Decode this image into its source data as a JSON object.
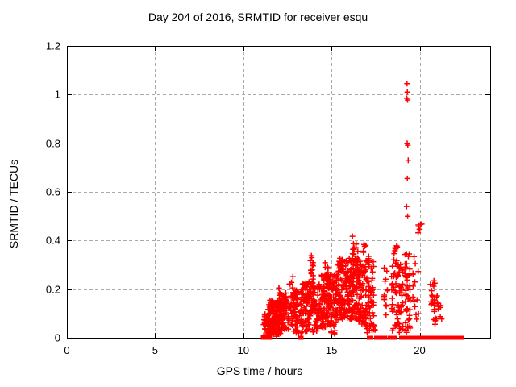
{
  "chart_data": {
    "type": "scatter",
    "title": "Day 204 of 2016, SRMTID for receiver esqu",
    "xlabel": "GPS time / hours",
    "ylabel": "SRMTID / TECUs",
    "xlim": [
      0,
      24
    ],
    "ylim": [
      0,
      1.2
    ],
    "xticks": [
      0,
      5,
      10,
      15,
      20
    ],
    "yticks": [
      0,
      0.2,
      0.4,
      0.6,
      0.8,
      1,
      1.2
    ],
    "xtick_labels": [
      "0",
      "5",
      "10",
      "15",
      "20"
    ],
    "ytick_labels": [
      "0",
      "0.2",
      "0.4",
      "0.6",
      "0.8",
      "1",
      "1.2"
    ],
    "grid": true,
    "legend": "none",
    "marker": "plus",
    "marker_color": "#ff0000",
    "grid_color": "#aaaaaa",
    "axis_color": "#000000",
    "background_color": "#ffffff",
    "series_name": "SRMTID",
    "spike_points": [
      [
        19.28,
        1.045
      ],
      [
        19.3,
        1.01
      ],
      [
        19.27,
        0.985
      ],
      [
        19.32,
        0.978
      ],
      [
        19.29,
        0.8
      ],
      [
        19.33,
        0.792
      ],
      [
        19.35,
        0.73
      ],
      [
        19.3,
        0.655
      ],
      [
        19.26,
        0.54
      ],
      [
        19.32,
        0.5
      ]
    ],
    "clusters": [
      {
        "x": [
          11.15,
          11.5
        ],
        "y": [
          0.005,
          0.11
        ],
        "n": 30
      },
      {
        "x": [
          11.4,
          12.35
        ],
        "y": [
          0.01,
          0.155
        ],
        "n": 170
      },
      {
        "x": [
          11.85,
          11.98
        ],
        "y": [
          0.004,
          0.02
        ],
        "n": 4
      },
      {
        "x": [
          11.95,
          12.45
        ],
        "y": [
          0.12,
          0.205
        ],
        "n": 25
      },
      {
        "x": [
          12.4,
          13.35
        ],
        "y": [
          0.02,
          0.2
        ],
        "n": 110
      },
      {
        "x": [
          12.55,
          12.85
        ],
        "y": [
          0.2,
          0.26
        ],
        "n": 5
      },
      {
        "x": [
          13.35,
          14.35
        ],
        "y": [
          0.02,
          0.23
        ],
        "n": 130
      },
      {
        "x": [
          13.78,
          13.98
        ],
        "y": [
          0.17,
          0.345
        ],
        "n": 16
      },
      {
        "x": [
          14.35,
          15.35
        ],
        "y": [
          0.04,
          0.26
        ],
        "n": 170
      },
      {
        "x": [
          14.6,
          14.82
        ],
        "y": [
          0.24,
          0.315
        ],
        "n": 8
      },
      {
        "x": [
          14.85,
          15.2
        ],
        "y": [
          0.012,
          0.035
        ],
        "n": 5
      },
      {
        "x": [
          15.35,
          16.55
        ],
        "y": [
          0.07,
          0.33
        ],
        "n": 210
      },
      {
        "x": [
          16.15,
          16.5
        ],
        "y": [
          0.32,
          0.42
        ],
        "n": 14
      },
      {
        "x": [
          16.55,
          17.4
        ],
        "y": [
          0.04,
          0.32
        ],
        "n": 120
      },
      {
        "x": [
          16.8,
          17.15
        ],
        "y": [
          0.32,
          0.385
        ],
        "n": 7
      },
      {
        "x": [
          17.0,
          17.5
        ],
        "y": [
          0.01,
          0.05
        ],
        "n": 8
      },
      {
        "x": [
          17.95,
          18.2
        ],
        "y": [
          0.08,
          0.33
        ],
        "n": 14
      },
      {
        "x": [
          18.4,
          19.05
        ],
        "y": [
          0.02,
          0.31
        ],
        "n": 70
      },
      {
        "x": [
          18.5,
          18.8
        ],
        "y": [
          0.31,
          0.385
        ],
        "n": 8
      },
      {
        "x": [
          19.15,
          19.5
        ],
        "y": [
          0.02,
          0.35
        ],
        "n": 45
      },
      {
        "x": [
          19.6,
          19.95
        ],
        "y": [
          0.06,
          0.36
        ],
        "n": 14
      },
      {
        "x": [
          19.88,
          20.12
        ],
        "y": [
          0.415,
          0.475
        ],
        "n": 7
      },
      {
        "x": [
          20.55,
          21.0
        ],
        "y": [
          0.14,
          0.235
        ],
        "n": 16
      },
      {
        "x": [
          20.65,
          21.25
        ],
        "y": [
          0.05,
          0.155
        ],
        "n": 18
      }
    ],
    "zero_points": [
      11.13,
      11.22,
      11.42,
      11.5,
      13.2,
      13.3,
      17.12,
      17.25,
      17.55,
      17.65,
      17.8,
      17.95,
      18.05,
      18.32,
      18.4,
      18.5,
      18.6,
      18.95,
      19.05,
      19.15,
      19.22,
      19.4,
      19.55,
      19.62,
      19.7,
      19.78,
      19.85,
      19.92,
      20.0,
      20.08,
      20.16,
      20.3,
      20.45,
      20.6,
      20.72,
      20.9,
      21.05,
      21.22,
      21.4,
      21.62,
      21.8,
      21.95,
      22.1,
      22.3,
      22.4
    ]
  }
}
